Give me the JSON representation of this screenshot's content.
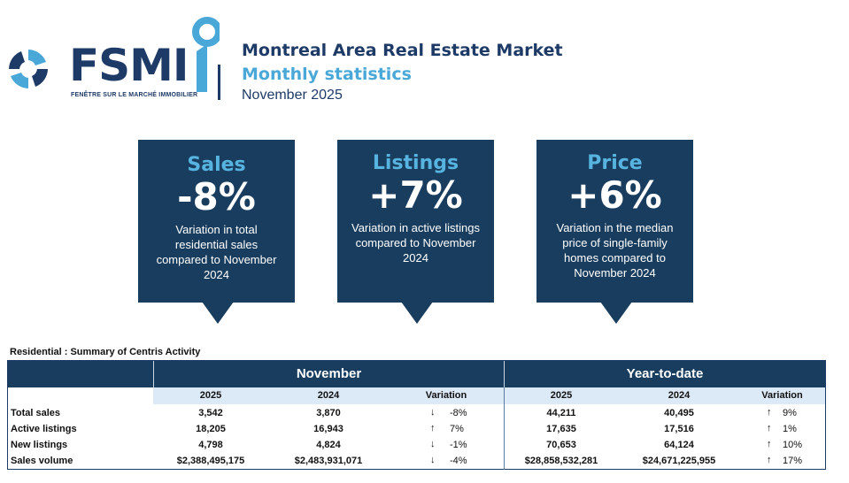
{
  "brand": {
    "logo_text": "FSMI",
    "logo_tagline": "FENÊTRE SUR LE MARCHÉ IMMOBILIER",
    "colors": {
      "navy": "#1e3a66",
      "light_blue": "#4aa8d8",
      "panel": "#193d5e"
    }
  },
  "header": {
    "title": "Montreal Area Real Estate Market",
    "subtitle": "Monthly statistics",
    "period": "November 2025"
  },
  "callouts": [
    {
      "title": "Sales",
      "value": "-8%",
      "description": "Variation in total residential sales compared to November 2024"
    },
    {
      "title": "Listings",
      "value": "+7%",
      "description": "Variation in active listings compared to November 2024"
    },
    {
      "title": "Price",
      "value": "+6%",
      "description": "Variation in the median price of single-family homes compared to November 2024"
    }
  ],
  "table": {
    "caption": "Residential : Summary of Centris Activity",
    "groups": [
      "November",
      "Year-to-date"
    ],
    "columns": [
      "2025",
      "2024",
      "Variation",
      "2025",
      "2024",
      "Variation"
    ],
    "rows": [
      {
        "label": "Total sales",
        "nov_2025": "3,542",
        "nov_2024": "3,870",
        "nov_dir": "down",
        "nov_var": "-8%",
        "ytd_2025": "44,211",
        "ytd_2024": "40,495",
        "ytd_dir": "up",
        "ytd_var": "9%"
      },
      {
        "label": "Active listings",
        "nov_2025": "18,205",
        "nov_2024": "16,943",
        "nov_dir": "up",
        "nov_var": "7%",
        "ytd_2025": "17,635",
        "ytd_2024": "17,516",
        "ytd_dir": "up",
        "ytd_var": "1%"
      },
      {
        "label": "New listings",
        "nov_2025": "4,798",
        "nov_2024": "4,824",
        "nov_dir": "down",
        "nov_var": "-1%",
        "ytd_2025": "70,653",
        "ytd_2024": "64,124",
        "ytd_dir": "up",
        "ytd_var": "10%"
      },
      {
        "label": "Sales volume",
        "nov_2025": "$2,388,495,175",
        "nov_2024": "$2,483,931,071",
        "nov_dir": "down",
        "nov_var": "-4%",
        "ytd_2025": "$28,858,532,281",
        "ytd_2024": "$24,671,225,955",
        "ytd_dir": "up",
        "ytd_var": "17%"
      }
    ]
  }
}
